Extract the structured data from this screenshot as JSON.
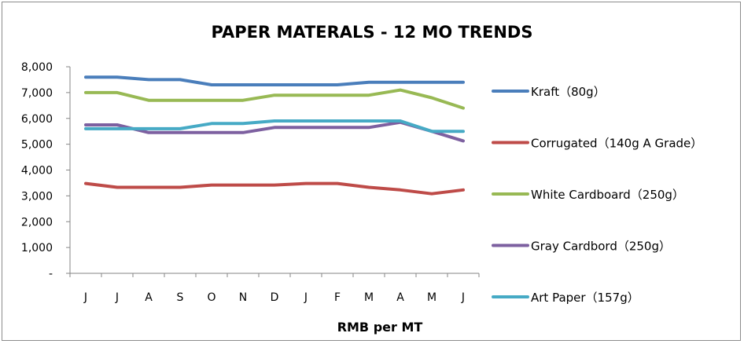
{
  "chart_data": {
    "type": "line",
    "title": "PAPER MATERALS - 12 MO TRENDS",
    "xlabel": "RMB per MT",
    "ylabel": "",
    "categories": [
      "J",
      "J",
      "A",
      "S",
      "O",
      "N",
      "D",
      "J",
      "F",
      "M",
      "A",
      "M",
      "J"
    ],
    "y_tick_labels": [
      "-",
      "1,000",
      "2,000",
      "3,000",
      "4,000",
      "5,000",
      "6,000",
      "7,000",
      "8,000"
    ],
    "ylim": [
      0,
      8000
    ],
    "grid": false,
    "legend_position": "right",
    "series": [
      {
        "name": "Kraft（80g）",
        "color": "#4a7ebb",
        "values": [
          7600,
          7600,
          7500,
          7500,
          7300,
          7300,
          7300,
          7300,
          7300,
          7400,
          7400,
          7400,
          7400
        ]
      },
      {
        "name": "Corrugated（140g A Grade）",
        "color": "#be4b48",
        "values": [
          3480,
          3330,
          3330,
          3330,
          3420,
          3420,
          3420,
          3480,
          3480,
          3330,
          3230,
          3080,
          3230
        ]
      },
      {
        "name": "White Cardboard（250g）",
        "color": "#98b954",
        "values": [
          7000,
          7000,
          6700,
          6700,
          6700,
          6700,
          6900,
          6900,
          6900,
          6900,
          7100,
          6800,
          6400
        ]
      },
      {
        "name": "Gray Cardbord（250g）",
        "color": "#7d60a0",
        "values": [
          5750,
          5750,
          5450,
          5450,
          5450,
          5450,
          5650,
          5650,
          5650,
          5650,
          5850,
          5500,
          5130
        ]
      },
      {
        "name": "Art Paper（157g）",
        "color": "#46aac5",
        "values": [
          5600,
          5600,
          5600,
          5600,
          5800,
          5800,
          5900,
          5900,
          5900,
          5900,
          5900,
          5500,
          5500
        ]
      }
    ]
  }
}
